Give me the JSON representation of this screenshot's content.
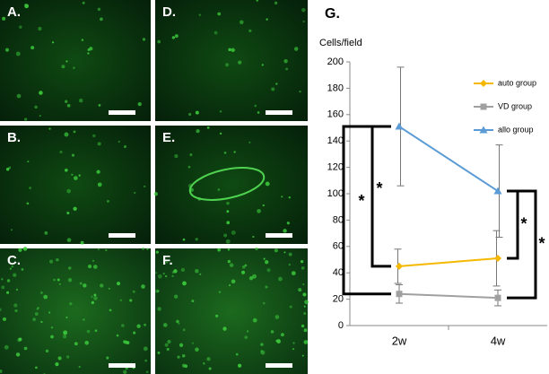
{
  "panels": [
    "A.",
    "B.",
    "C.",
    "D.",
    "E.",
    "F."
  ],
  "chart_data": {
    "type": "line",
    "title": "G.",
    "y_label": "Cells/field",
    "categories": [
      "2w",
      "4w"
    ],
    "series": [
      {
        "name": "auto group",
        "color": "#f5b800",
        "marker": "diamond",
        "values": [
          45,
          51
        ],
        "errors": [
          13,
          21
        ]
      },
      {
        "name": "VD group",
        "color": "#a0a0a0",
        "marker": "square",
        "values": [
          24,
          21
        ],
        "errors": [
          7,
          6
        ]
      },
      {
        "name": "allo group",
        "color": "#5a9bd5",
        "marker": "triangle",
        "values": [
          151,
          102
        ],
        "errors": [
          45,
          35
        ]
      }
    ],
    "ylim": [
      0,
      200
    ],
    "yticks": [
      0,
      20,
      40,
      60,
      80,
      100,
      120,
      140,
      160,
      180,
      200
    ],
    "annotations": [
      "*",
      "*",
      "*",
      "*"
    ]
  }
}
